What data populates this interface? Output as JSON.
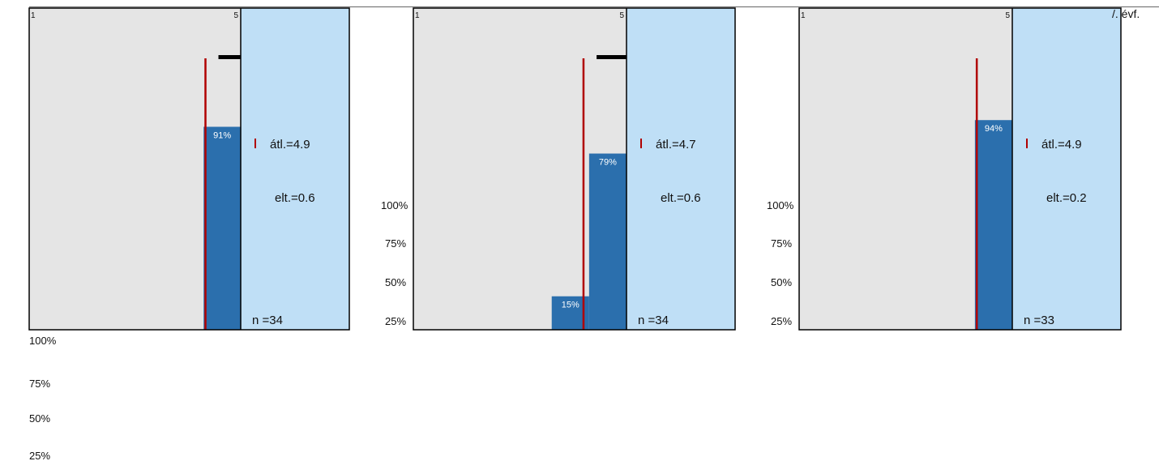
{
  "page": {
    "corner_label": "/. évf."
  },
  "colors": {
    "plot_bg": "#e5e5e5",
    "stats_bg": "#bfdff6",
    "bar": "#2b6fad",
    "mean_line": "#b00000",
    "median_bar": "#000000",
    "border": "#000000",
    "text": "#111111"
  },
  "chart_data": [
    {
      "type": "bar",
      "scale_min_label": "1",
      "scale_max_label": "5",
      "categories": [
        1,
        2,
        3,
        4,
        5
      ],
      "values": [
        0,
        0,
        0,
        0,
        91
      ],
      "bar_labels": [
        "",
        "",
        "",
        "",
        "91%"
      ],
      "ytick_labels": [
        "100%",
        "75%",
        "50%",
        "25%"
      ],
      "mean": 4.9,
      "mean_label": "átl.=4.9",
      "sd_label": "elt.=0.6",
      "n_label": "n =34",
      "has_median_bar": true
    },
    {
      "type": "bar",
      "scale_min_label": "1",
      "scale_max_label": "5",
      "categories": [
        1,
        2,
        3,
        4,
        5
      ],
      "values": [
        0,
        0,
        0,
        15,
        79
      ],
      "bar_labels": [
        "",
        "",
        "",
        "15%",
        "79%"
      ],
      "ytick_labels": [
        "100%",
        "75%",
        "50%",
        "25%"
      ],
      "mean": 4.7,
      "mean_label": "átl.=4.7",
      "sd_label": "elt.=0.6",
      "n_label": "n =34",
      "has_median_bar": true
    },
    {
      "type": "bar",
      "scale_min_label": "1",
      "scale_max_label": "5",
      "categories": [
        1,
        2,
        3,
        4,
        5
      ],
      "values": [
        0,
        0,
        0,
        0,
        94
      ],
      "bar_labels": [
        "",
        "",
        "",
        "",
        "94%"
      ],
      "ytick_labels": [
        "100%",
        "75%",
        "50%",
        "25%"
      ],
      "mean": 4.9,
      "mean_label": "átl.=4.9",
      "sd_label": "elt.=0.2",
      "n_label": "n =33",
      "has_median_bar": false
    }
  ]
}
